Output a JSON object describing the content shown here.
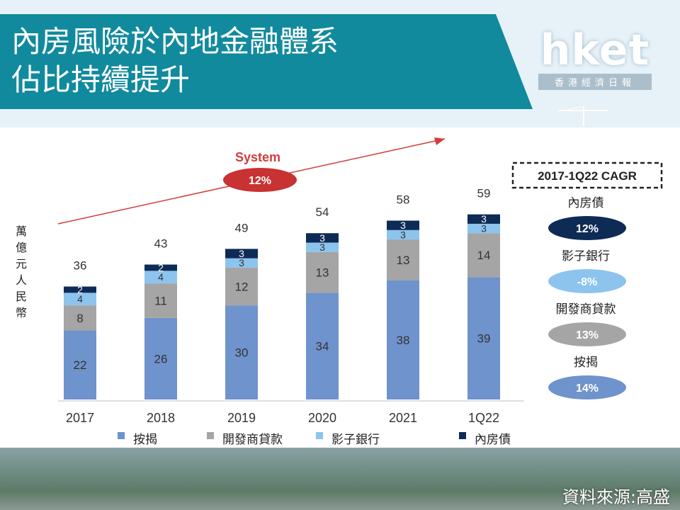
{
  "header": {
    "title_line1": "內房風險於內地金融體系",
    "title_line2": "佔比持續提升",
    "logo_text": "hket",
    "logo_subtitle": "香港經濟日報"
  },
  "footer": {
    "source": "資料來源:高盛"
  },
  "colors": {
    "banner": "#128a9d",
    "mortgage": "#6f93cc",
    "developer_loans": "#a5a5a5",
    "shadow_banking": "#8cc4ee",
    "property_bonds": "#0d2b55",
    "system_ellipse": "#c83232"
  },
  "chart_data": {
    "type": "bar",
    "stacked": true,
    "categories": [
      "2017",
      "2018",
      "2019",
      "2020",
      "2021",
      "1Q22"
    ],
    "series": [
      {
        "name": "按揭",
        "values": [
          22,
          26,
          30,
          34,
          38,
          39
        ]
      },
      {
        "name": "開發商貸款",
        "values": [
          8,
          11,
          12,
          13,
          13,
          14
        ]
      },
      {
        "name": "影子銀行",
        "values": [
          4,
          4,
          3,
          3,
          3,
          3
        ]
      },
      {
        "name": "內房債",
        "values": [
          2,
          2,
          3,
          3,
          3,
          3
        ]
      }
    ],
    "totals": [
      36,
      43,
      49,
      54,
      58,
      59
    ],
    "ylabel": "萬億元人民幣",
    "legend_position": "bottom",
    "grid": false,
    "annotation": {
      "label": "System",
      "value": "12%"
    },
    "cagr_box": {
      "title": "2017-1Q22 CAGR",
      "items": [
        {
          "name": "內房債",
          "value": "12%"
        },
        {
          "name": "影子銀行",
          "value": "-8%"
        },
        {
          "name": "開發商貸款",
          "value": "13%"
        },
        {
          "name": "按揭",
          "value": "14%"
        }
      ]
    }
  }
}
